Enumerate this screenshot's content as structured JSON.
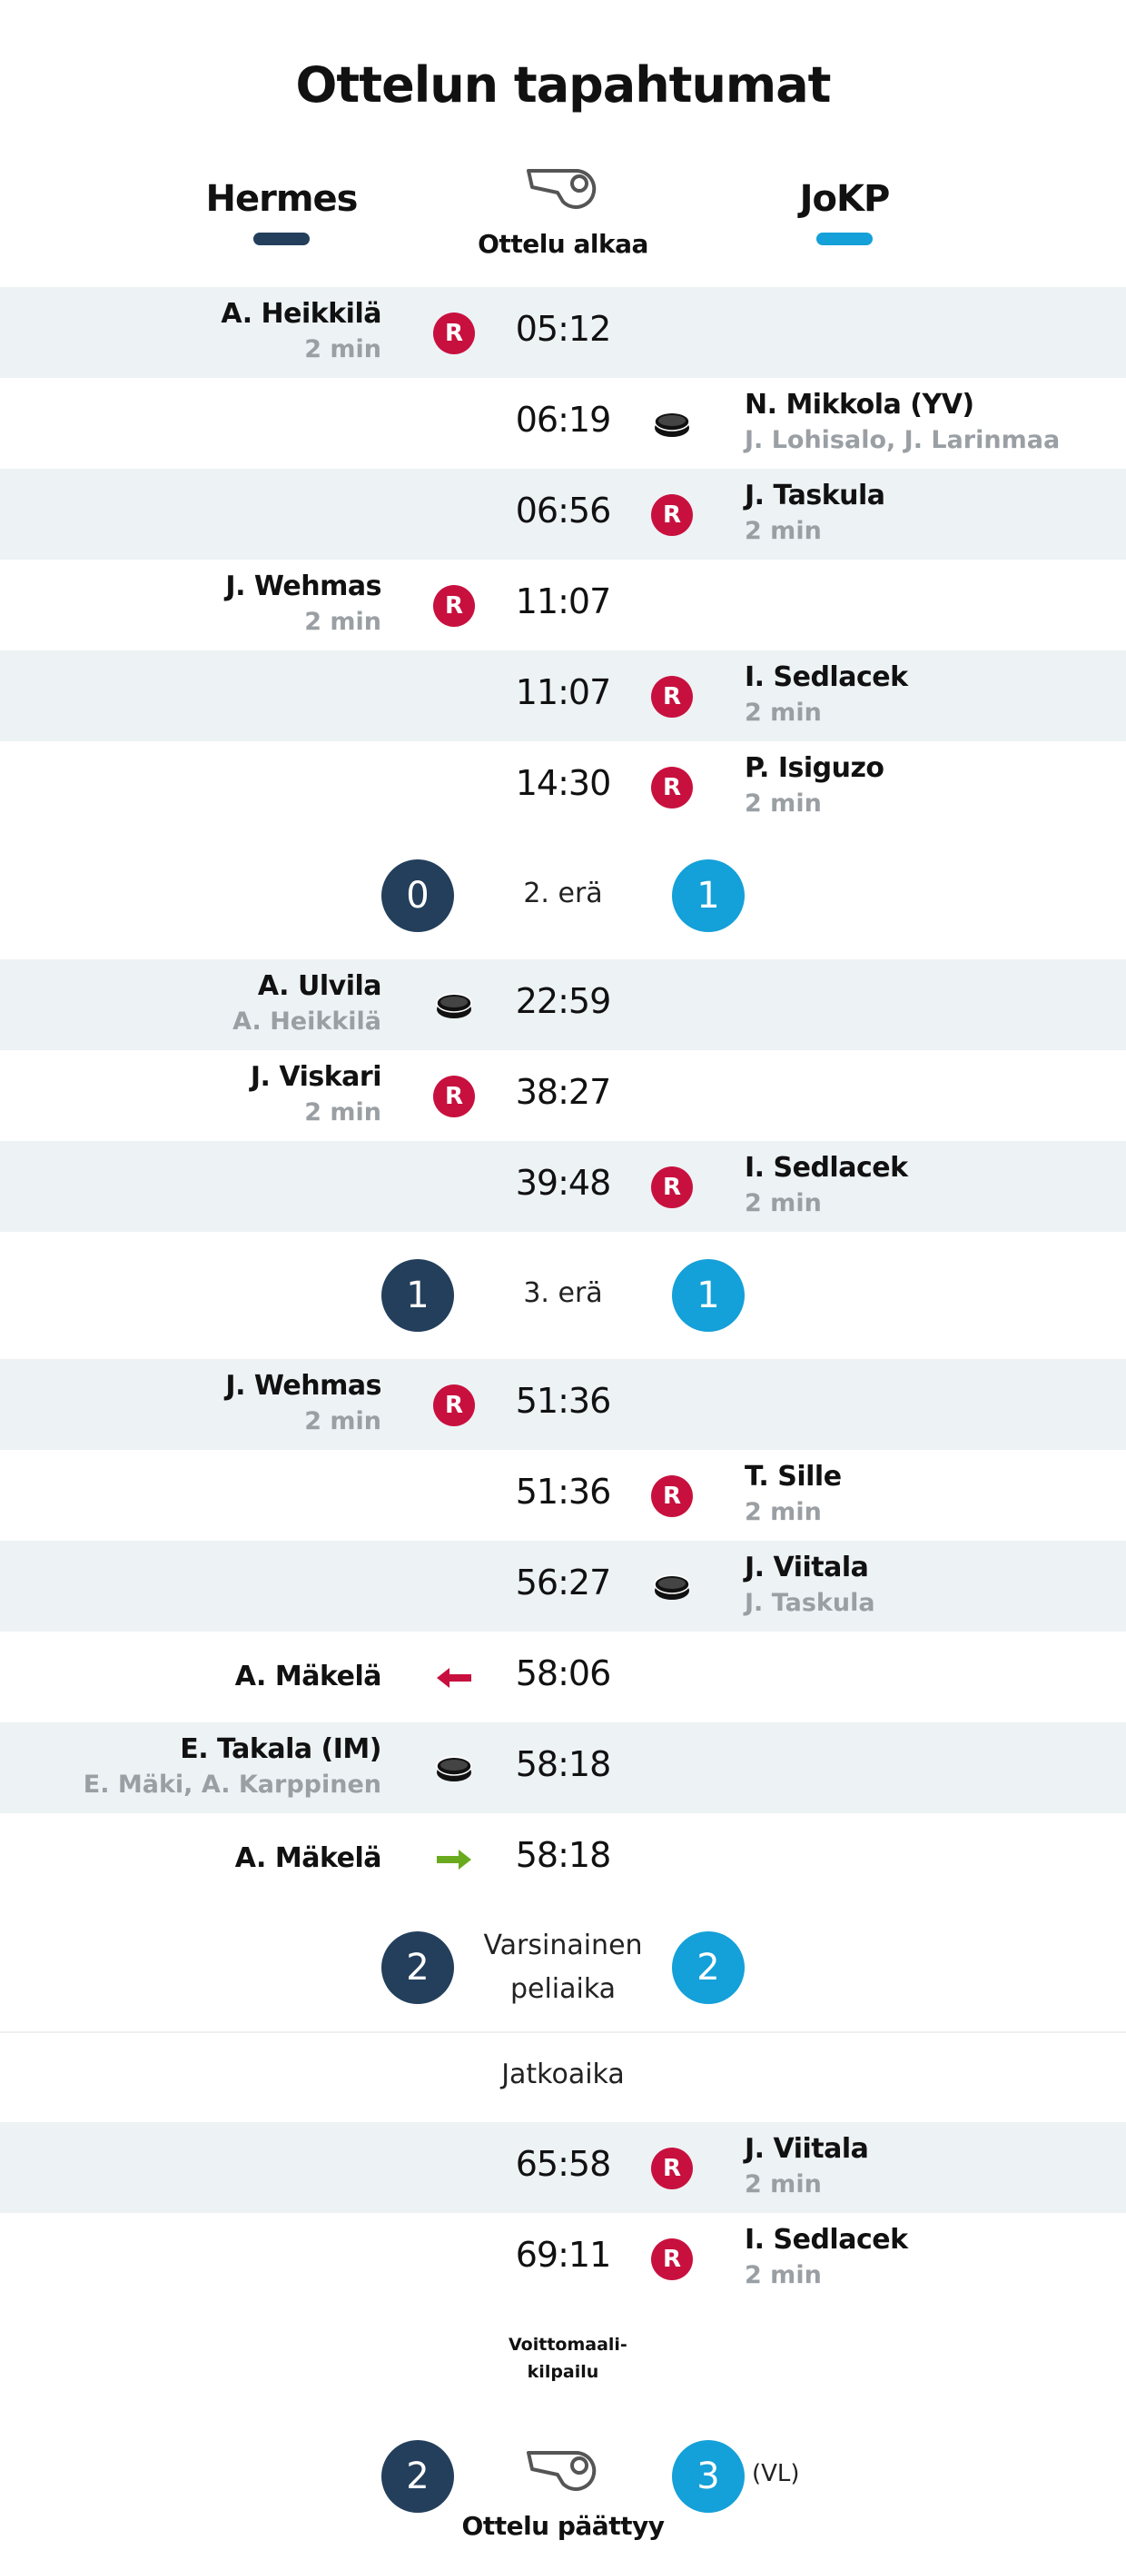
{
  "title": "Ottelun tapahtumat",
  "teams": {
    "home": "Hermes",
    "away": "JoKP"
  },
  "colors": {
    "home": "#233f5c",
    "away": "#14a0d8",
    "penalty": "#c8103e",
    "shade": "#edf2f5",
    "arrow_in": "#6aaa1e",
    "arrow_out": "#c8103e"
  },
  "start_label": "Ottelu alkaa",
  "end_label": "Ottelu päättyy",
  "penalty_badge": "R",
  "events": [
    {
      "time": "05:12",
      "side": "home",
      "type": "penalty",
      "player": "A. Heikkilä",
      "detail": "2 min"
    },
    {
      "time": "06:19",
      "side": "away",
      "type": "goal",
      "player": "N. Mikkola (YV)",
      "detail": "J. Lohisalo, J. Larinmaa"
    },
    {
      "time": "06:56",
      "side": "away",
      "type": "penalty",
      "player": "J. Taskula",
      "detail": "2 min"
    },
    {
      "time": "11:07",
      "side": "home",
      "type": "penalty",
      "player": "J. Wehmas",
      "detail": "2 min"
    },
    {
      "time": "11:07",
      "side": "away",
      "type": "penalty",
      "player": "I. Sedlacek",
      "detail": "2 min"
    },
    {
      "time": "14:30",
      "side": "away",
      "type": "penalty",
      "player": "P. Isiguzo",
      "detail": "2 min"
    },
    {
      "time": "22:59",
      "side": "home",
      "type": "goal",
      "player": "A. Ulvila",
      "detail": "A. Heikkilä"
    },
    {
      "time": "38:27",
      "side": "home",
      "type": "penalty",
      "player": "J. Viskari",
      "detail": "2 min"
    },
    {
      "time": "39:48",
      "side": "away",
      "type": "penalty",
      "player": "I. Sedlacek",
      "detail": "2 min"
    },
    {
      "time": "51:36",
      "side": "home",
      "type": "penalty",
      "player": "J. Wehmas",
      "detail": "2 min"
    },
    {
      "time": "51:36",
      "side": "away",
      "type": "penalty",
      "player": "T. Sille",
      "detail": "2 min"
    },
    {
      "time": "56:27",
      "side": "away",
      "type": "goal",
      "player": "J. Viitala",
      "detail": "J. Taskula"
    },
    {
      "time": "58:06",
      "side": "home",
      "type": "goalie-out",
      "player": "A. Mäkelä",
      "detail": ""
    },
    {
      "time": "58:18",
      "side": "home",
      "type": "goal",
      "player": "E. Takala (IM)",
      "detail": "E. Mäki, A. Karppinen"
    },
    {
      "time": "58:18",
      "side": "home",
      "type": "goalie-in",
      "player": "A. Mäkelä",
      "detail": ""
    },
    {
      "time": "65:58",
      "side": "away",
      "type": "penalty",
      "player": "J. Viitala",
      "detail": "2 min"
    },
    {
      "time": "69:11",
      "side": "away",
      "type": "penalty",
      "player": "I. Sedlacek",
      "detail": "2 min"
    }
  ],
  "periods": [
    {
      "label": "2. erä",
      "home": "0",
      "away": "1"
    },
    {
      "label": "3. erä",
      "home": "1",
      "away": "1"
    },
    {
      "label": "Varsinainen peliaika",
      "home": "2",
      "away": "2"
    }
  ],
  "overtime_label": "Jatkoaika",
  "shootout_label": "Voittomaali-kilpailu",
  "final": {
    "home": "2",
    "away": "3",
    "note": "(VL)"
  }
}
